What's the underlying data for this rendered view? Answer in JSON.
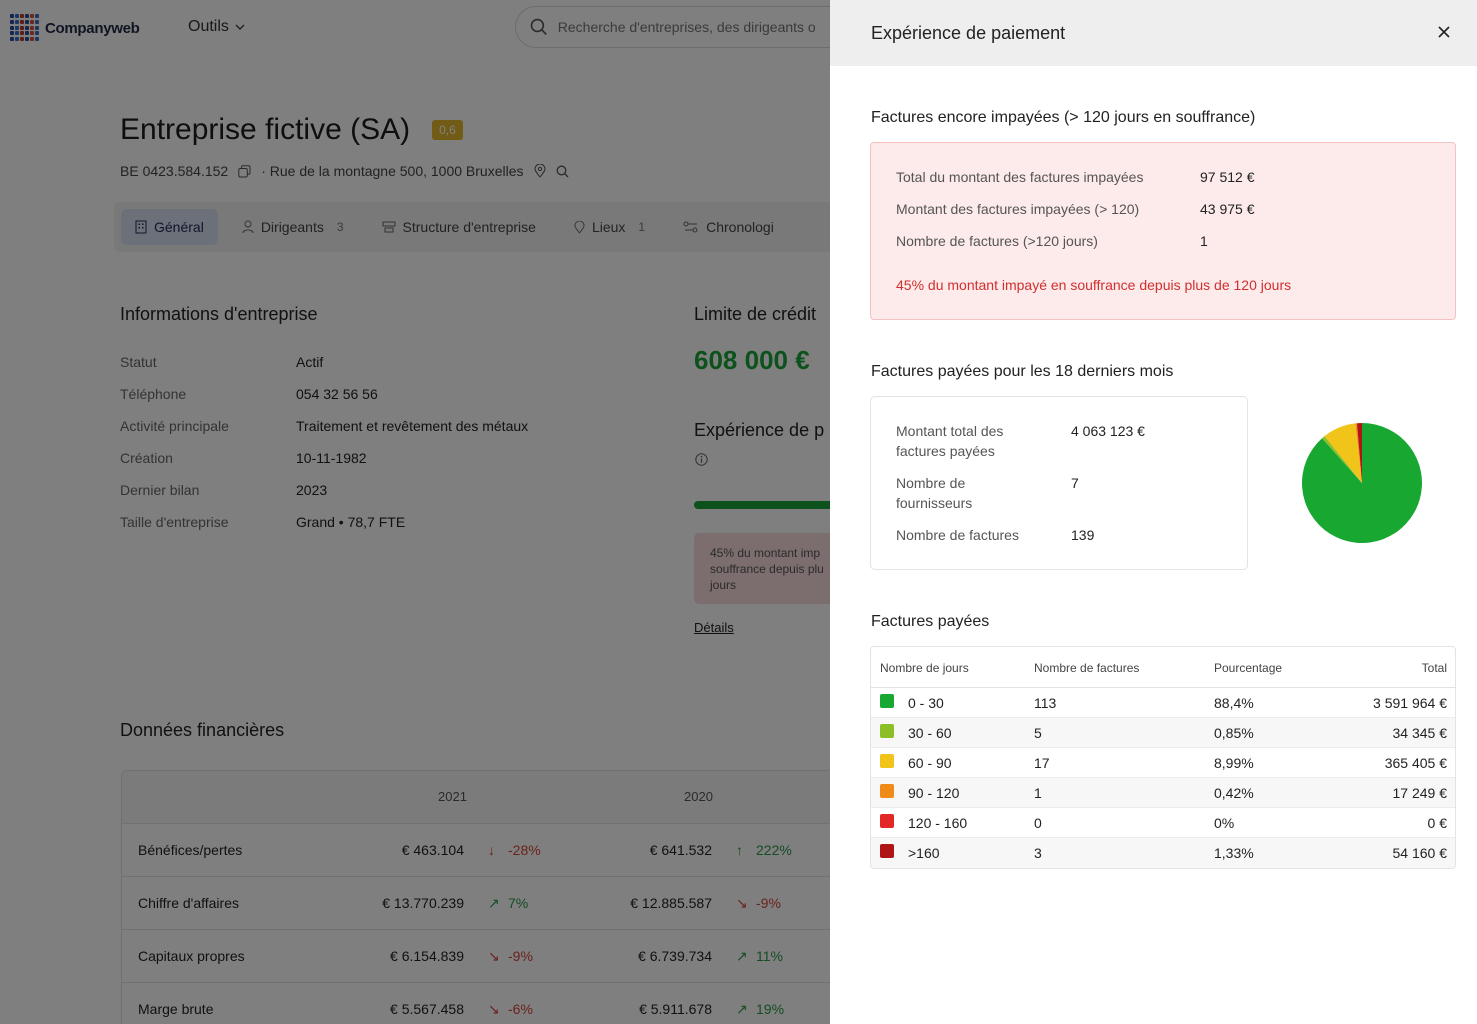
{
  "app": {
    "logo_text": "Companyweb",
    "tools_label": "Outils",
    "search_placeholder": "Recherche d'entreprises, des dirigeants o"
  },
  "company": {
    "name": "Entreprise fictive (SA)",
    "score": "0,6",
    "vat": "BE 0423.584.152",
    "address": "· Rue de la montagne 500, 1000 Bruxelles"
  },
  "tabs": [
    {
      "label": "Général",
      "count": ""
    },
    {
      "label": "Dirigeants",
      "count": "3"
    },
    {
      "label": "Structure d'entreprise",
      "count": ""
    },
    {
      "label": "Lieux",
      "count": "1"
    },
    {
      "label": "Chronologi",
      "count": ""
    }
  ],
  "info": {
    "title": "Informations d'entreprise",
    "rows": [
      {
        "k": "Statut",
        "v": "Actif"
      },
      {
        "k": "Téléphone",
        "v": "054 32 56 56"
      },
      {
        "k": "Activité principale",
        "v": "Traitement et revêtement des métaux"
      },
      {
        "k": "Création",
        "v": "10-11-1982"
      },
      {
        "k": "Dernier bilan",
        "v": "2023"
      },
      {
        "k": "Taille d'entreprise",
        "v": "Grand   •   78,7 FTE"
      }
    ]
  },
  "credit": {
    "title": "Limite de crédit",
    "value": "608 000 €",
    "exp_title": "Expérience de p",
    "alert": "45% du montant imp souffrance depuis plu jours",
    "details": "Détails"
  },
  "financial": {
    "title": "Données financières",
    "years": [
      "2021",
      "2020"
    ],
    "rows": [
      {
        "label": "Bénéfices/pertes",
        "v1": "€ 463.104",
        "d1": "-28%",
        "v2": "€ 641.532",
        "d2": "222%"
      },
      {
        "label": "Chiffre d'affaires",
        "v1": "€ 13.770.239",
        "d1": "7%",
        "v2": "€ 12.885.587",
        "d2": "-9%"
      },
      {
        "label": "Capitaux propres",
        "v1": "€ 6.154.839",
        "d1": "-9%",
        "v2": "€ 6.739.734",
        "d2": "11%"
      },
      {
        "label": "Marge brute",
        "v1": "€ 5.567.458",
        "d1": "-6%",
        "v2": "€ 5.911.678",
        "d2": "19%"
      }
    ]
  },
  "drawer": {
    "title": "Expérience de paiement",
    "unpaid": {
      "title": "Factures encore impayées (> 120 jours en souffrance)",
      "rows": [
        {
          "k": "Total du montant des factures impayées",
          "v": "97 512 €"
        },
        {
          "k": "Montant des factures impayées (> 120)",
          "v": "43 975 €"
        },
        {
          "k": "Nombre de factures (>120 jours)",
          "v": "1"
        }
      ],
      "message": "45% du montant impayé en souffrance depuis plus de 120 jours"
    },
    "paid18": {
      "title": "Factures payées pour les 18 derniers mois",
      "rows": [
        {
          "k": "Montant total des factures payées",
          "v": "4 063 123 €"
        },
        {
          "k": "Nombre de fournisseurs",
          "v": "7"
        },
        {
          "k": "Nombre de factures",
          "v": "139"
        }
      ]
    },
    "paid_table": {
      "title": "Factures payées",
      "headers": [
        "Nombre de jours",
        "Nombre de factures",
        "Pourcentage",
        "Total"
      ],
      "rows": [
        {
          "range": "0 - 30",
          "count": "113",
          "pct": "88,4%",
          "total": "3 591 964 €",
          "color": "#18a832"
        },
        {
          "range": "30 - 60",
          "count": "5",
          "pct": "0,85%",
          "total": "34 345 €",
          "color": "#8cbf26"
        },
        {
          "range": "60 - 90",
          "count": "17",
          "pct": "8,99%",
          "total": "365 405 €",
          "color": "#f0c419"
        },
        {
          "range": "90 - 120",
          "count": "1",
          "pct": "0,42%",
          "total": "17 249 €",
          "color": "#f08a19"
        },
        {
          "range": "120 - 160",
          "count": "0",
          "pct": "0%",
          "total": "0 €",
          "color": "#e32626"
        },
        {
          "range": ">160",
          "count": "3",
          "pct": "1,33%",
          "total": "54 160 €",
          "color": "#b01515"
        }
      ]
    }
  },
  "chart_data": {
    "type": "pie",
    "categories": [
      "0 - 30",
      "30 - 60",
      "60 - 90",
      "90 - 120",
      "120 - 160",
      ">160"
    ],
    "values": [
      88.4,
      0.85,
      8.99,
      0.42,
      0,
      1.33
    ],
    "colors": [
      "#18a832",
      "#8cbf26",
      "#f0c419",
      "#f08a19",
      "#e32626",
      "#b01515"
    ]
  }
}
